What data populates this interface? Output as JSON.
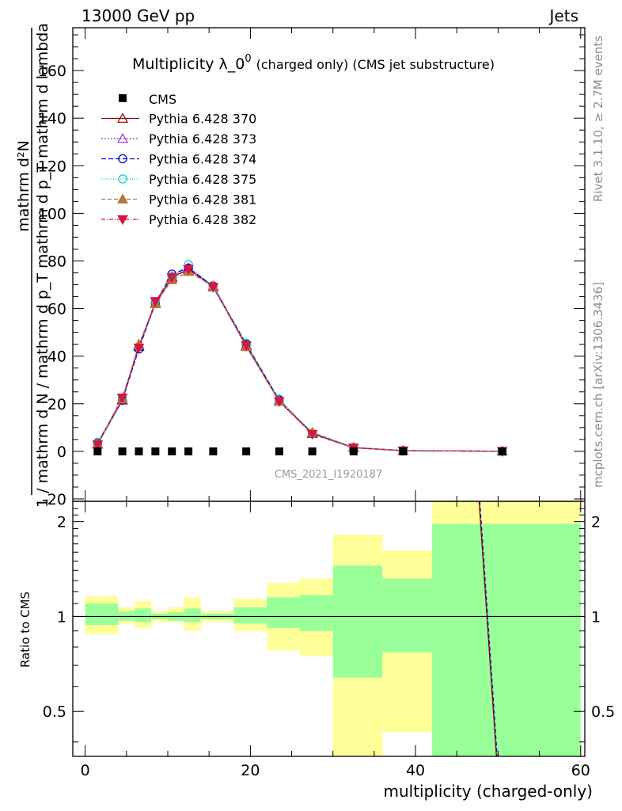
{
  "header": {
    "left": "13000 GeV pp",
    "right": "Jets"
  },
  "side_labels": {
    "rivet": "Rivet 3.1.10, ≥ 2.7M events",
    "mcplots": "mcplots.cern.ch [arXiv:1306.3436]"
  },
  "chart_data": [
    {
      "type": "line",
      "panel": "main",
      "title": "Multiplicity λ_0",
      "title_sup": "0",
      "title_suffix": "(charged only) (CMS jet substructure)",
      "ylabel_numerator": "mathrm d²N",
      "ylabel_denominator": "1 / mathrm d N / mathrm d p_T mathrm d p_T mathrm d lambda",
      "ylabel": "1/mathrm d N / mathrm d p_T mathrm d²N / mathrm d p_T mathrm d lambda",
      "analysis_id": "CMS_2021_I1920187",
      "xlim": [
        -1.5,
        60.5
      ],
      "ylim": [
        -21,
        178
      ],
      "yticks": [
        -20,
        0,
        20,
        40,
        60,
        80,
        100,
        120,
        140,
        160
      ],
      "legend_position": "top-left",
      "cms": {
        "name": "CMS",
        "x": [
          1.5,
          4.5,
          6.5,
          8.5,
          10.5,
          12.5,
          15.5,
          19.5,
          23.5,
          27.5,
          32.5,
          38.5,
          50.5
        ],
        "y": [
          0,
          0,
          0,
          0,
          0,
          0,
          0,
          0,
          0,
          0,
          0,
          0,
          0
        ]
      },
      "mc_x": [
        1.5,
        4.5,
        6.5,
        8.5,
        10.5,
        12.5,
        15.5,
        19.5,
        23.5,
        27.5,
        32.5,
        38.5,
        50.5
      ],
      "series": [
        {
          "name": "Pythia 6.428 370",
          "color": "#8b0000",
          "dash": "",
          "marker": "triangle-open",
          "values": [
            3.0,
            21.5,
            44.0,
            62.0,
            73.0,
            76.5,
            69.5,
            44.5,
            21.0,
            7.5,
            1.5,
            0.3,
            0.05
          ]
        },
        {
          "name": "Pythia 6.428 373",
          "color": "#9932cc",
          "dash": "2,2",
          "marker": "triangle-open",
          "values": [
            3.2,
            22.0,
            44.5,
            62.5,
            73.5,
            77.0,
            69.0,
            44.0,
            21.5,
            7.8,
            1.6,
            0.3,
            0.05
          ]
        },
        {
          "name": "Pythia 6.428 374",
          "color": "#0000cd",
          "dash": "6,3",
          "marker": "circle-open",
          "values": [
            3.5,
            21.5,
            43.0,
            62.5,
            74.5,
            77.0,
            69.5,
            45.0,
            21.5,
            7.5,
            1.6,
            0.3,
            0.05
          ]
        },
        {
          "name": "Pythia 6.428 375",
          "color": "#00ced1",
          "dash": "1,2",
          "marker": "circle-open",
          "values": [
            3.8,
            22.5,
            44.0,
            63.0,
            73.5,
            78.5,
            69.0,
            45.5,
            22.0,
            7.6,
            1.7,
            0.35,
            0.05
          ]
        },
        {
          "name": "Pythia 6.428 381",
          "color": "#b5773a",
          "dash": "5,3",
          "marker": "triangle-filled",
          "values": [
            3.0,
            22.0,
            45.0,
            62.0,
            72.0,
            75.5,
            69.5,
            44.0,
            21.0,
            8.0,
            1.6,
            0.3,
            0.05
          ]
        },
        {
          "name": "Pythia 6.428 382",
          "color": "#dc143c",
          "dash": "5,2,1,2",
          "marker": "triangle-down-filled",
          "values": [
            2.8,
            22.5,
            43.5,
            63.0,
            73.0,
            76.5,
            69.0,
            44.5,
            21.0,
            7.2,
            1.5,
            0.3,
            0.05
          ]
        }
      ]
    },
    {
      "type": "area",
      "panel": "ratio",
      "ylabel": "Ratio to CMS",
      "xlabel": "multiplicity (charged-only)",
      "xlim": [
        -1.5,
        60.5
      ],
      "ylim": [
        0.36,
        2.32
      ],
      "yscale": "log",
      "yticks": [
        0.5,
        1,
        2
      ],
      "xticks": [
        0,
        20,
        40,
        60
      ],
      "reference": 1,
      "bands": [
        {
          "x0": 0,
          "x1": 3,
          "green": [
            0.94,
            1.1
          ],
          "yellow": [
            0.88,
            1.16
          ]
        },
        {
          "x0": 3,
          "x1": 4,
          "green": [
            0.94,
            1.1
          ],
          "yellow": [
            0.88,
            1.16
          ]
        },
        {
          "x0": 4,
          "x1": 6,
          "green": [
            0.97,
            1.04
          ],
          "yellow": [
            0.95,
            1.07
          ]
        },
        {
          "x0": 6,
          "x1": 8,
          "green": [
            0.96,
            1.06
          ],
          "yellow": [
            0.92,
            1.12
          ]
        },
        {
          "x0": 8,
          "x1": 10,
          "green": [
            0.98,
            1.02
          ],
          "yellow": [
            0.96,
            1.04
          ]
        },
        {
          "x0": 10,
          "x1": 12,
          "green": [
            0.97,
            1.03
          ],
          "yellow": [
            0.96,
            1.07
          ]
        },
        {
          "x0": 12,
          "x1": 14,
          "green": [
            0.96,
            1.06
          ],
          "yellow": [
            0.9,
            1.15
          ]
        },
        {
          "x0": 14,
          "x1": 18,
          "green": [
            0.98,
            1.02
          ],
          "yellow": [
            0.96,
            1.04
          ]
        },
        {
          "x0": 18,
          "x1": 22,
          "green": [
            0.95,
            1.07
          ],
          "yellow": [
            0.9,
            1.14
          ]
        },
        {
          "x0": 22,
          "x1": 26,
          "green": [
            0.92,
            1.15
          ],
          "yellow": [
            0.78,
            1.28
          ]
        },
        {
          "x0": 26,
          "x1": 30,
          "green": [
            0.9,
            1.17
          ],
          "yellow": [
            0.75,
            1.32
          ]
        },
        {
          "x0": 30,
          "x1": 36,
          "green": [
            0.64,
            1.45
          ],
          "yellow": [
            0.36,
            1.82
          ]
        },
        {
          "x0": 36,
          "x1": 42,
          "green": [
            0.77,
            1.32
          ],
          "yellow": [
            0.43,
            1.62
          ]
        },
        {
          "x0": 42,
          "x1": 60,
          "green": [
            0.36,
            1.97
          ],
          "yellow": [
            0.36,
            2.32
          ]
        }
      ],
      "mc_line": {
        "x": [
          47.7,
          49.8
        ],
        "y": [
          2.32,
          0.36
        ]
      }
    }
  ]
}
